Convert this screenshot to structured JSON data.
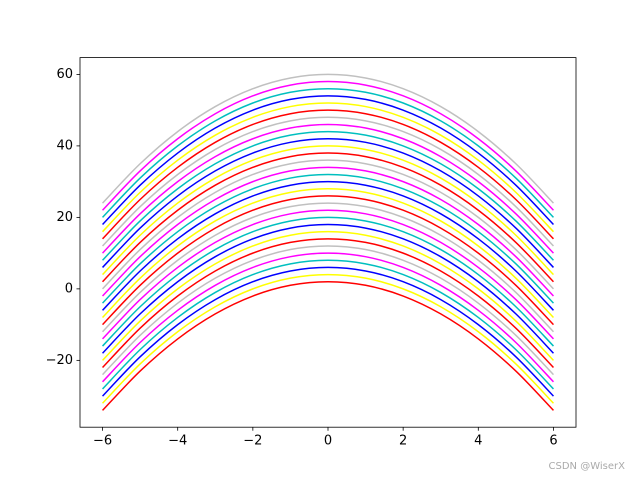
{
  "chart_data": {
    "type": "line",
    "x": [
      -6,
      -5,
      -4,
      -3,
      -2,
      -1,
      0,
      1,
      2,
      3,
      4,
      5,
      6
    ],
    "series": [
      {
        "color": "#ff0000",
        "values": [
          -34,
          -23,
          -14,
          -7,
          -2,
          1,
          2,
          1,
          -2,
          -7,
          -14,
          -23,
          -34
        ]
      },
      {
        "color": "#ffff00",
        "values": [
          -32,
          -21,
          -12,
          -5,
          0,
          3,
          4,
          3,
          0,
          -5,
          -12,
          -21,
          -32
        ]
      },
      {
        "color": "#0000ff",
        "values": [
          -30,
          -19,
          -10,
          -3,
          2,
          5,
          6,
          5,
          2,
          -3,
          -10,
          -19,
          -30
        ]
      },
      {
        "color": "#00bfbf",
        "values": [
          -28,
          -17,
          -8,
          -1,
          4,
          7,
          8,
          7,
          4,
          -1,
          -8,
          -17,
          -28
        ]
      },
      {
        "color": "#ff00ff",
        "values": [
          -26,
          -15,
          -6,
          1,
          6,
          9,
          10,
          9,
          6,
          1,
          -6,
          -15,
          -26
        ]
      },
      {
        "color": "#c0c0c0",
        "values": [
          -24,
          -13,
          -4,
          3,
          8,
          11,
          12,
          11,
          8,
          3,
          -4,
          -13,
          -24
        ]
      },
      {
        "color": "#ff0000",
        "values": [
          -22,
          -11,
          -2,
          5,
          10,
          13,
          14,
          13,
          10,
          5,
          -2,
          -11,
          -22
        ]
      },
      {
        "color": "#ffff00",
        "values": [
          -20,
          -9,
          0,
          7,
          12,
          15,
          16,
          15,
          12,
          7,
          0,
          -9,
          -20
        ]
      },
      {
        "color": "#0000ff",
        "values": [
          -18,
          -7,
          2,
          9,
          14,
          17,
          18,
          17,
          14,
          9,
          2,
          -7,
          -18
        ]
      },
      {
        "color": "#00bfbf",
        "values": [
          -16,
          -5,
          4,
          11,
          16,
          19,
          20,
          19,
          16,
          11,
          4,
          -5,
          -16
        ]
      },
      {
        "color": "#ff00ff",
        "values": [
          -14,
          -3,
          6,
          13,
          18,
          21,
          22,
          21,
          18,
          13,
          6,
          -3,
          -14
        ]
      },
      {
        "color": "#c0c0c0",
        "values": [
          -12,
          -1,
          8,
          15,
          20,
          23,
          24,
          23,
          20,
          15,
          8,
          -1,
          -12
        ]
      },
      {
        "color": "#ff0000",
        "values": [
          -10,
          1,
          10,
          17,
          22,
          25,
          26,
          25,
          22,
          17,
          10,
          1,
          -10
        ]
      },
      {
        "color": "#ffff00",
        "values": [
          -8,
          3,
          12,
          19,
          24,
          27,
          28,
          27,
          24,
          19,
          12,
          3,
          -8
        ]
      },
      {
        "color": "#0000ff",
        "values": [
          -6,
          5,
          14,
          21,
          26,
          29,
          30,
          29,
          26,
          21,
          14,
          5,
          -6
        ]
      },
      {
        "color": "#00bfbf",
        "values": [
          -4,
          7,
          16,
          23,
          28,
          31,
          32,
          31,
          28,
          23,
          16,
          7,
          -4
        ]
      },
      {
        "color": "#ff00ff",
        "values": [
          -2,
          9,
          18,
          25,
          30,
          33,
          34,
          33,
          30,
          25,
          18,
          9,
          -2
        ]
      },
      {
        "color": "#c0c0c0",
        "values": [
          0,
          11,
          20,
          27,
          32,
          35,
          36,
          35,
          32,
          27,
          20,
          11,
          0
        ]
      },
      {
        "color": "#ff0000",
        "values": [
          2,
          13,
          22,
          29,
          34,
          37,
          38,
          37,
          34,
          29,
          22,
          13,
          2
        ]
      },
      {
        "color": "#ffff00",
        "values": [
          4,
          15,
          24,
          31,
          36,
          39,
          40,
          39,
          36,
          31,
          24,
          15,
          4
        ]
      },
      {
        "color": "#0000ff",
        "values": [
          6,
          17,
          26,
          33,
          38,
          41,
          42,
          41,
          38,
          33,
          26,
          17,
          6
        ]
      },
      {
        "color": "#00bfbf",
        "values": [
          8,
          19,
          28,
          35,
          40,
          43,
          44,
          43,
          40,
          35,
          28,
          19,
          8
        ]
      },
      {
        "color": "#ff00ff",
        "values": [
          10,
          21,
          30,
          37,
          42,
          45,
          46,
          45,
          42,
          37,
          30,
          21,
          10
        ]
      },
      {
        "color": "#c0c0c0",
        "values": [
          12,
          23,
          32,
          39,
          44,
          47,
          48,
          47,
          44,
          39,
          32,
          23,
          12
        ]
      },
      {
        "color": "#ff0000",
        "values": [
          14,
          25,
          34,
          41,
          46,
          49,
          50,
          49,
          46,
          41,
          34,
          25,
          14
        ]
      },
      {
        "color": "#ffff00",
        "values": [
          16,
          27,
          36,
          43,
          48,
          51,
          52,
          51,
          48,
          43,
          36,
          27,
          16
        ]
      },
      {
        "color": "#0000ff",
        "values": [
          18,
          29,
          38,
          45,
          50,
          53,
          54,
          53,
          50,
          45,
          38,
          29,
          18
        ]
      },
      {
        "color": "#00bfbf",
        "values": [
          20,
          31,
          40,
          47,
          52,
          55,
          56,
          55,
          52,
          47,
          40,
          31,
          20
        ]
      },
      {
        "color": "#ff00ff",
        "values": [
          22,
          33,
          42,
          49,
          54,
          57,
          58,
          57,
          54,
          49,
          42,
          33,
          22
        ]
      },
      {
        "color": "#c0c0c0",
        "values": [
          24,
          35,
          44,
          51,
          56,
          59,
          60,
          59,
          56,
          51,
          44,
          35,
          24
        ]
      }
    ],
    "xlim": [
      -6.6,
      6.6
    ],
    "ylim": [
      -38.7,
      64.7
    ],
    "xticks": [
      {
        "value": -6,
        "label": "−6"
      },
      {
        "value": -4,
        "label": "−4"
      },
      {
        "value": -2,
        "label": "−2"
      },
      0,
      2,
      4,
      6
    ],
    "yticks": [
      {
        "value": -20,
        "label": "−20"
      },
      0,
      20,
      40,
      60
    ],
    "grid": false,
    "watermark": "CSDN @WiserX"
  }
}
